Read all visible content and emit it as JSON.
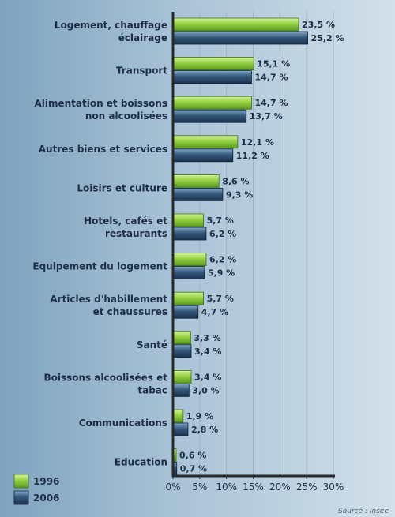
{
  "chart_data": {
    "type": "bar",
    "orientation": "horizontal",
    "categories": [
      [
        "Logement, chauffage",
        "éclairage"
      ],
      [
        "Transport"
      ],
      [
        "Alimentation et boissons",
        "non alcoolisées"
      ],
      [
        "Autres biens et services"
      ],
      [
        "Loisirs et culture"
      ],
      [
        "Hotels, cafés et",
        "restaurants"
      ],
      [
        "Equipement du logement"
      ],
      [
        "Articles d'habillement",
        "et chaussures"
      ],
      [
        "Santé"
      ],
      [
        "Boissons alcoolisées et",
        "tabac"
      ],
      [
        "Communications"
      ],
      [
        "Education"
      ]
    ],
    "series": [
      {
        "name": "1996",
        "color": "#8fcf3f",
        "values": [
          23.5,
          15.1,
          14.7,
          12.1,
          8.6,
          5.7,
          6.2,
          5.7,
          3.3,
          3.4,
          1.9,
          0.6
        ],
        "labels": [
          "23,5 %",
          "15,1 %",
          "14,7 %",
          "12,1 %",
          "8,6 %",
          "5,7 %",
          "6,2 %",
          "5,7 %",
          "3,3 %",
          "3,4 %",
          "1,9 %",
          "0,6 %"
        ]
      },
      {
        "name": "2006",
        "color": "#2f5272",
        "values": [
          25.2,
          14.7,
          13.7,
          11.2,
          9.3,
          6.2,
          5.9,
          4.7,
          3.4,
          3.0,
          2.8,
          0.7
        ],
        "labels": [
          "25,2 %",
          "14,7 %",
          "13,7 %",
          "11,2 %",
          "9,3 %",
          "6,2 %",
          "5,9 %",
          "4,7 %",
          "3,4 %",
          "3,0 %",
          "2,8 %",
          "0,7 %"
        ]
      }
    ],
    "xlim": [
      0,
      30
    ],
    "ticks": [
      0,
      5,
      10,
      15,
      20,
      25,
      30
    ],
    "tick_labels": [
      "0%",
      "5%",
      "10%",
      "15%",
      "20%",
      "25%",
      "30%"
    ],
    "grid": true,
    "legend": "bottom-left",
    "source": "Source : Insee"
  }
}
